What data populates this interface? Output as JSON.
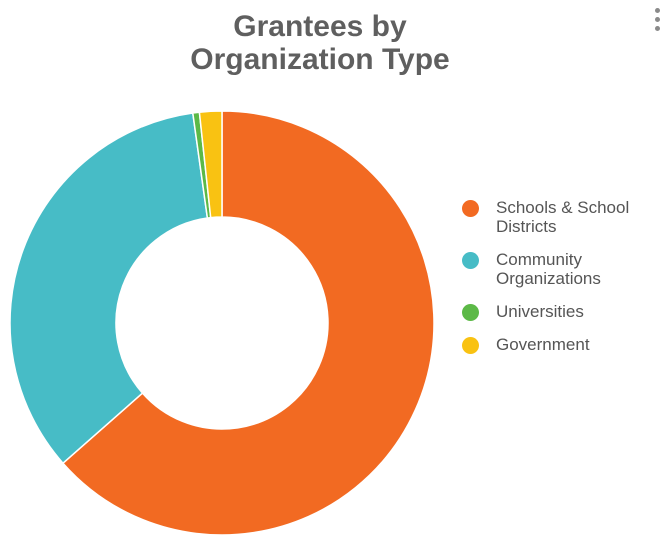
{
  "menu": {
    "icon": "kebab-menu-icon"
  },
  "chart_data": {
    "type": "pie",
    "style": "donut",
    "title": [
      "Grantees by",
      "Organization Type"
    ],
    "categories": [
      "Schools & School Districts",
      "Community Organizations",
      "Universities",
      "Government"
    ],
    "values": [
      63.5,
      34.3,
      0.5,
      1.7
    ],
    "unit": "percent",
    "colors": [
      "#f26a22",
      "#47bcc6",
      "#5cb947",
      "#f9c212"
    ],
    "legend": {
      "position": "right"
    },
    "start": "top",
    "direction": "clockwise"
  }
}
